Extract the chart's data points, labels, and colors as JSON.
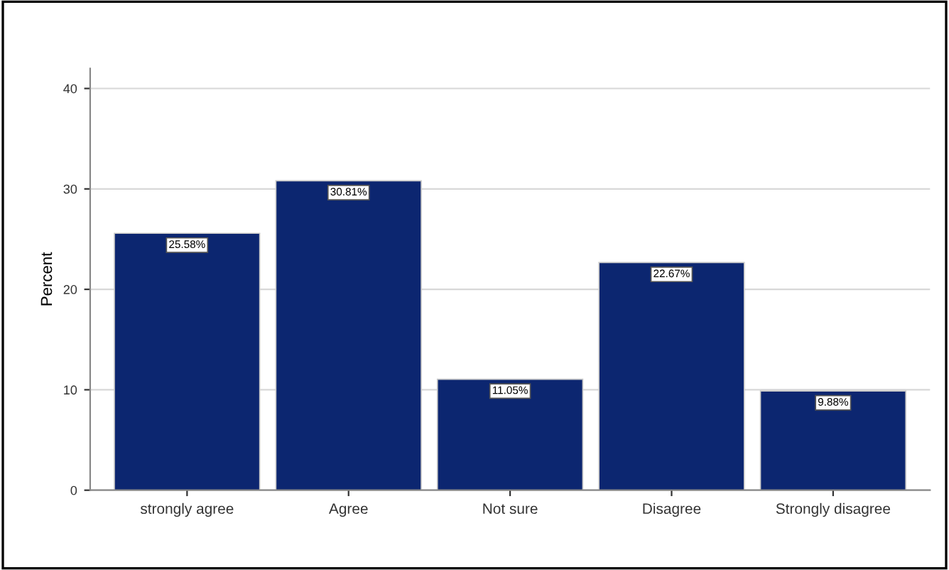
{
  "chart_data": {
    "type": "bar",
    "ylabel": "Percent",
    "categories": [
      "strongly agree",
      "Agree",
      "Not sure",
      "Disagree",
      "Strongly disagree"
    ],
    "values": [
      25.58,
      30.81,
      11.05,
      22.67,
      9.88
    ],
    "value_labels": [
      "25.58%",
      "30.81%",
      "11.05%",
      "22.67%",
      "9.88%"
    ],
    "color": "#0c2670",
    "ylim": [
      0,
      42
    ],
    "yticks": [
      0,
      10,
      20,
      30,
      40
    ],
    "grid": "y"
  }
}
